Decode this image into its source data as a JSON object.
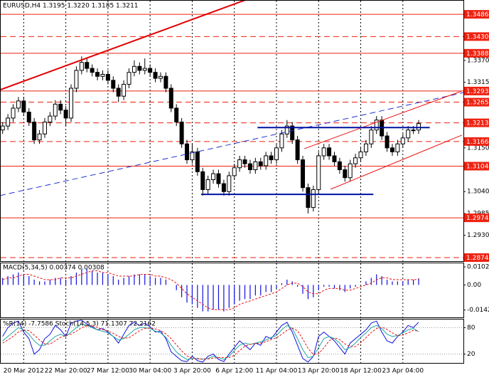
{
  "chart_data": [
    {
      "type": "candlestick",
      "title": "EURUSD,H4  1.3195 1.3220 1.3185 1.3211",
      "xlim": [
        -0.5,
        87.5
      ],
      "xticks": [
        {
          "value": 4,
          "label": "20 Mar 2012"
        },
        {
          "value": 12,
          "label": "22 Mar 20:00"
        },
        {
          "value": 20,
          "label": "27 Mar 12:00"
        },
        {
          "value": 28,
          "label": "30 Mar 04:00"
        },
        {
          "value": 36,
          "label": "3 Apr 20:00"
        },
        {
          "value": 44,
          "label": "6 Apr 12:00"
        },
        {
          "value": 52,
          "label": "11 Apr 04:00"
        },
        {
          "value": 60,
          "label": "13 Apr 20:00"
        },
        {
          "value": 68,
          "label": "18 Apr 12:00"
        },
        {
          "value": 76,
          "label": "23 Apr 04:00"
        }
      ],
      "ylim": [
        1.2865,
        1.3522
      ],
      "yticks": [
        {
          "value": 1.337,
          "label": "1.3370"
        },
        1.3315,
        {
          "value": 1.315,
          "label": "1.3150"
        },
        {
          "value": 1.304,
          "label": "1.3040"
        },
        1.2985,
        {
          "value": 1.293,
          "label": "1.2930"
        }
      ],
      "level_color": "#ee2211",
      "levels": [
        {
          "value": 1.3486,
          "label": "1.3486",
          "dashed": false
        },
        {
          "value": 1.343,
          "label": "1.3430",
          "dashed": true
        },
        {
          "value": 1.3388,
          "label": "1.3388",
          "dashed": false
        },
        {
          "value": 1.3293,
          "label": "1.3293",
          "dashed": false
        },
        {
          "value": 1.3265,
          "label": "1.3265",
          "dashed": true
        },
        {
          "value": 1.3213,
          "label": "1.3213",
          "dashed": true
        },
        {
          "value": 1.3166,
          "label": "1.3166",
          "dashed": true
        },
        {
          "value": 1.3104,
          "label": "1.3104",
          "dashed": false
        },
        {
          "value": 1.2974,
          "label": "1.2974",
          "dashed": false
        },
        {
          "value": 1.2874,
          "label": "1.2874",
          "dashed": true
        }
      ],
      "up_color": "#ffffff",
      "down_color": "#000000",
      "open": [
        1.3195,
        1.3205,
        1.3225,
        1.325,
        1.3268,
        1.324,
        1.3215,
        1.317,
        1.3185,
        1.3215,
        1.323,
        1.326,
        1.3245,
        1.3225,
        1.33,
        1.3345,
        1.3365,
        1.335,
        1.334,
        1.333,
        1.3335,
        1.332,
        1.33,
        1.328,
        1.331,
        1.334,
        1.3355,
        1.3345,
        1.335,
        1.334,
        1.3325,
        1.333,
        1.33,
        1.325,
        1.3215,
        1.316,
        1.312,
        1.314,
        1.309,
        1.3045,
        1.307,
        1.3085,
        1.306,
        1.304,
        1.308,
        1.31,
        1.312,
        1.311,
        1.3095,
        1.3115,
        1.3105,
        1.313,
        1.312,
        1.315,
        1.3185,
        1.3205,
        1.317,
        1.312,
        1.305,
        1.3,
        1.3045,
        1.313,
        1.315,
        1.313,
        1.3115,
        1.3095,
        1.3075,
        1.311,
        1.3125,
        1.314,
        1.316,
        1.3195,
        1.322,
        1.318,
        1.315,
        1.314,
        1.316,
        1.3175,
        1.3195,
        1.3195
      ],
      "high": [
        1.3215,
        1.3235,
        1.326,
        1.3278,
        1.3278,
        1.325,
        1.3225,
        1.3195,
        1.3225,
        1.324,
        1.327,
        1.327,
        1.3255,
        1.331,
        1.3355,
        1.338,
        1.3375,
        1.336,
        1.335,
        1.3345,
        1.3345,
        1.333,
        1.331,
        1.332,
        1.335,
        1.337,
        1.3365,
        1.3375,
        1.336,
        1.335,
        1.334,
        1.334,
        1.331,
        1.326,
        1.3225,
        1.317,
        1.316,
        1.315,
        1.31,
        1.308,
        1.3095,
        1.3095,
        1.307,
        1.309,
        1.311,
        1.313,
        1.313,
        1.312,
        1.3125,
        1.3125,
        1.314,
        1.314,
        1.316,
        1.3195,
        1.322,
        1.3215,
        1.318,
        1.313,
        1.306,
        1.3055,
        1.314,
        1.316,
        1.316,
        1.314,
        1.3125,
        1.3105,
        1.312,
        1.3135,
        1.315,
        1.317,
        1.3205,
        1.323,
        1.323,
        1.319,
        1.316,
        1.317,
        1.3185,
        1.3205,
        1.3205,
        1.322
      ],
      "low": [
        1.3185,
        1.3195,
        1.3215,
        1.324,
        1.323,
        1.3205,
        1.316,
        1.316,
        1.3175,
        1.3205,
        1.322,
        1.3235,
        1.3205,
        1.3215,
        1.329,
        1.3335,
        1.334,
        1.333,
        1.332,
        1.332,
        1.331,
        1.329,
        1.3265,
        1.327,
        1.33,
        1.333,
        1.3335,
        1.3335,
        1.333,
        1.3315,
        1.3315,
        1.329,
        1.324,
        1.3205,
        1.315,
        1.311,
        1.311,
        1.308,
        1.303,
        1.3035,
        1.306,
        1.305,
        1.303,
        1.303,
        1.307,
        1.309,
        1.31,
        1.3085,
        1.3085,
        1.3095,
        1.3095,
        1.311,
        1.311,
        1.314,
        1.3175,
        1.316,
        1.311,
        1.304,
        1.2985,
        1.299,
        1.3035,
        1.312,
        1.312,
        1.3105,
        1.3085,
        1.3065,
        1.3065,
        1.31,
        1.3115,
        1.313,
        1.315,
        1.3185,
        1.317,
        1.314,
        1.313,
        1.313,
        1.315,
        1.3165,
        1.3185,
        1.3185
      ],
      "close": [
        1.3205,
        1.3225,
        1.325,
        1.3268,
        1.324,
        1.3215,
        1.317,
        1.3185,
        1.3215,
        1.323,
        1.326,
        1.3245,
        1.3225,
        1.33,
        1.3345,
        1.3365,
        1.335,
        1.334,
        1.333,
        1.3335,
        1.332,
        1.33,
        1.328,
        1.331,
        1.334,
        1.3355,
        1.3345,
        1.335,
        1.334,
        1.3325,
        1.333,
        1.33,
        1.325,
        1.3215,
        1.316,
        1.312,
        1.314,
        1.309,
        1.3045,
        1.307,
        1.3085,
        1.306,
        1.304,
        1.308,
        1.31,
        1.312,
        1.311,
        1.3095,
        1.3115,
        1.3105,
        1.313,
        1.312,
        1.315,
        1.3185,
        1.3205,
        1.317,
        1.312,
        1.305,
        1.3,
        1.3045,
        1.313,
        1.315,
        1.313,
        1.3115,
        1.3095,
        1.3075,
        1.311,
        1.3125,
        1.314,
        1.316,
        1.3195,
        1.322,
        1.318,
        1.315,
        1.314,
        1.316,
        1.3175,
        1.3195,
        1.3195,
        1.3211
      ],
      "trendlines": [
        {
          "color": "#e00000",
          "width": 2,
          "dashed": false,
          "x": [
            -0.5,
            46.1
          ],
          "y": [
            1.3296,
            1.3522
          ]
        },
        {
          "color": "#2030d0",
          "width": 1,
          "dashed": true,
          "x": [
            -0.5,
            87.5
          ],
          "y": [
            1.303,
            1.3289
          ]
        },
        {
          "color": "#ee1111",
          "width": 1,
          "dashed": false,
          "x": [
            57.3,
            87.2
          ],
          "y": [
            1.3148,
            1.3293
          ]
        },
        {
          "color": "#ee1111",
          "width": 1,
          "dashed": false,
          "x": [
            62.3,
            87.2
          ],
          "y": [
            1.3046,
            1.3182
          ]
        },
        {
          "color": "#0010a0",
          "width": 2,
          "dashed": false,
          "x": [
            48.4,
            81.1
          ],
          "y": [
            1.3201,
            1.3201
          ]
        },
        {
          "color": "#0010a0",
          "width": 2,
          "dashed": false,
          "x": [
            37.7,
            70.4
          ],
          "y": [
            1.3033,
            1.3033
          ]
        }
      ]
    },
    {
      "type": "macd",
      "title": "MACD(5,34,5) 0.00374 0.00308",
      "ylim": [
        -0.01838,
        0.01266
      ],
      "yticks": [
        0.01021,
        {
          "value": 0,
          "label": "0.00"
        },
        -0.01421
      ],
      "color": "#1010e0",
      "signal_color": "#ee1111",
      "values": [
        0.004,
        0.005,
        0.006,
        0.007,
        0.006,
        0.005,
        0.003,
        0.002,
        0.002,
        0.003,
        0.004,
        0.004,
        0.003,
        0.005,
        0.007,
        0.009,
        0.009,
        0.008,
        0.007,
        0.007,
        0.006,
        0.005,
        0.003,
        0.004,
        0.005,
        0.006,
        0.006,
        0.006,
        0.005,
        0.004,
        0.004,
        0.003,
        0.0,
        -0.003,
        -0.007,
        -0.01,
        -0.011,
        -0.013,
        -0.015,
        -0.015,
        -0.014,
        -0.014,
        -0.015,
        -0.013,
        -0.011,
        -0.009,
        -0.008,
        -0.008,
        -0.006,
        -0.006,
        -0.004,
        -0.004,
        -0.002,
        0.001,
        0.003,
        0.002,
        -0.001,
        -0.005,
        -0.008,
        -0.007,
        -0.003,
        -0.001,
        -0.001,
        -0.002,
        -0.003,
        -0.004,
        -0.002,
        -0.001,
        0.0,
        0.002,
        0.004,
        0.006,
        0.005,
        0.003,
        0.002,
        0.002,
        0.002,
        0.003,
        0.003,
        0.00374
      ],
      "signal": [
        0.003,
        0.004,
        0.004,
        0.005,
        0.006,
        0.006,
        0.005,
        0.004,
        0.003,
        0.003,
        0.003,
        0.004,
        0.004,
        0.004,
        0.005,
        0.006,
        0.007,
        0.008,
        0.008,
        0.007,
        0.007,
        0.006,
        0.005,
        0.005,
        0.005,
        0.005,
        0.006,
        0.006,
        0.006,
        0.005,
        0.005,
        0.004,
        0.003,
        0.001,
        -0.002,
        -0.005,
        -0.007,
        -0.009,
        -0.011,
        -0.013,
        -0.014,
        -0.014,
        -0.014,
        -0.014,
        -0.013,
        -0.011,
        -0.01,
        -0.009,
        -0.008,
        -0.007,
        -0.006,
        -0.005,
        -0.004,
        -0.002,
        0.0,
        0.001,
        0.001,
        -0.001,
        -0.004,
        -0.005,
        -0.005,
        -0.003,
        -0.002,
        -0.002,
        -0.002,
        -0.003,
        -0.003,
        -0.002,
        -0.001,
        0.0,
        0.001,
        0.003,
        0.004,
        0.004,
        0.003,
        0.003,
        0.003,
        0.003,
        0.003,
        0.00308
      ]
    },
    {
      "type": "stochastic",
      "title": "%R(14) -7.7586  Stoch(14,5,3) 71.1307 72.2162",
      "ylim": [
        0,
        100
      ],
      "yticks": [
        80,
        20
      ],
      "y2lim": [
        -100,
        0
      ],
      "series": [
        {
          "color": "#1010e0",
          "axis": "y2",
          "dashed": false,
          "values": [
            -40,
            -20,
            -10,
            -5,
            -30,
            -45,
            -80,
            -70,
            -45,
            -35,
            -15,
            -25,
            -40,
            -10,
            -5,
            -3,
            -12,
            -18,
            -25,
            -22,
            -30,
            -40,
            -55,
            -35,
            -15,
            -8,
            -15,
            -10,
            -18,
            -30,
            -28,
            -45,
            -75,
            -85,
            -95,
            -97,
            -85,
            -95,
            -98,
            -85,
            -80,
            -92,
            -97,
            -80,
            -65,
            -50,
            -60,
            -70,
            -55,
            -60,
            -40,
            -45,
            -30,
            -15,
            -8,
            -30,
            -60,
            -90,
            -98,
            -85,
            -40,
            -30,
            -40,
            -50,
            -65,
            -80,
            -55,
            -45,
            -35,
            -25,
            -10,
            -5,
            -30,
            -50,
            -55,
            -40,
            -30,
            -15,
            -20,
            -7.7586
          ]
        },
        {
          "color": "#20a8a0",
          "dashed": false,
          "values": [
            50,
            60,
            70,
            80,
            75,
            65,
            50,
            40,
            40,
            50,
            60,
            65,
            60,
            70,
            80,
            88,
            85,
            80,
            75,
            72,
            68,
            60,
            52,
            55,
            65,
            75,
            80,
            80,
            78,
            72,
            68,
            58,
            40,
            25,
            15,
            8,
            10,
            10,
            8,
            10,
            15,
            12,
            8,
            15,
            28,
            40,
            45,
            42,
            45,
            48,
            52,
            58,
            62,
            75,
            85,
            78,
            55,
            30,
            12,
            15,
            35,
            55,
            60,
            55,
            45,
            30,
            35,
            45,
            58,
            68,
            80,
            85,
            78,
            65,
            60,
            62,
            68,
            75,
            78,
            71.1307
          ]
        },
        {
          "color": "#ee1111",
          "dashed": true,
          "values": [
            45,
            52,
            60,
            70,
            75,
            73,
            63,
            52,
            43,
            43,
            50,
            58,
            62,
            65,
            72,
            80,
            84,
            84,
            80,
            76,
            72,
            67,
            60,
            56,
            57,
            65,
            73,
            78,
            79,
            77,
            73,
            66,
            55,
            41,
            27,
            16,
            11,
            9,
            9,
            9,
            11,
            12,
            12,
            12,
            17,
            28,
            38,
            42,
            44,
            45,
            48,
            53,
            57,
            65,
            74,
            79,
            73,
            54,
            33,
            19,
            21,
            34,
            50,
            57,
            53,
            43,
            37,
            37,
            46,
            57,
            69,
            78,
            81,
            76,
            68,
            62,
            63,
            68,
            74,
            72.2162
          ]
        }
      ]
    }
  ]
}
